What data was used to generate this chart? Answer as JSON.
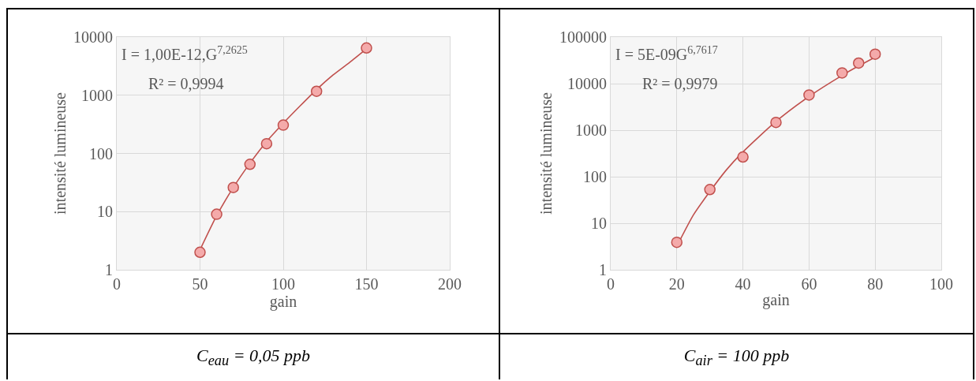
{
  "chart_data": [
    {
      "type": "scatter",
      "xlabel": "gain",
      "ylabel": "intensité lumineuse",
      "log": "y",
      "grid": true,
      "xlim": [
        0,
        200
      ],
      "xticks": [
        0,
        50,
        100,
        150,
        200
      ],
      "ylim": [
        1,
        10000
      ],
      "yticks": [
        1,
        10,
        100,
        1000,
        10000
      ],
      "series": [
        {
          "type": "line",
          "color": "#c0504d",
          "marker": "none",
          "x": [
            50,
            60,
            70,
            80,
            90,
            100,
            110,
            120,
            130,
            140,
            150
          ],
          "values": [
            2.2,
            8.5,
            26,
            68,
            160,
            330,
            650,
            1250,
            2240,
            3700,
            6300
          ]
        },
        {
          "type": "scatter",
          "color": "#f4aaaa",
          "marker": "circle",
          "x": [
            50,
            60,
            70,
            80,
            90,
            100,
            120,
            150
          ],
          "values": [
            2,
            9,
            26,
            65,
            147,
            307,
            1170,
            6500
          ]
        }
      ],
      "annotations": [
        "I = 1,00E-12,G$^{7,2625}$",
        "R² = 0,9994",
        "C$_{eau}$ = 0,05 ppb"
      ]
    },
    {
      "type": "scatter",
      "xlabel": "gain",
      "ylabel": "intensité lumineuse",
      "log": "y",
      "grid": true,
      "xlim": [
        0,
        100
      ],
      "xticks": [
        0,
        20,
        40,
        60,
        80,
        100
      ],
      "ylim": [
        1,
        100000
      ],
      "yticks": [
        1,
        10,
        100,
        1000,
        10000,
        100000
      ],
      "series": [
        {
          "type": "line",
          "color": "#c0504d",
          "marker": "none",
          "x": [
            20,
            25,
            30,
            35,
            40,
            50,
            60,
            70,
            75,
            80
          ],
          "values": [
            3.2,
            15,
            48,
            140,
            340,
            1540,
            5300,
            15000,
            24000,
            37000
          ]
        },
        {
          "type": "scatter",
          "color": "#f4aaaa",
          "marker": "circle",
          "x": [
            20,
            30,
            40,
            50,
            60,
            70,
            75,
            80
          ],
          "values": [
            3.9,
            53,
            265,
            1470,
            5700,
            17000,
            27600,
            43000
          ]
        }
      ],
      "annotations": [
        "I = 5E-09G$^{6,7617}$",
        "R² = 0,9979",
        "C$_{air}$ = 100 ppb"
      ]
    }
  ]
}
